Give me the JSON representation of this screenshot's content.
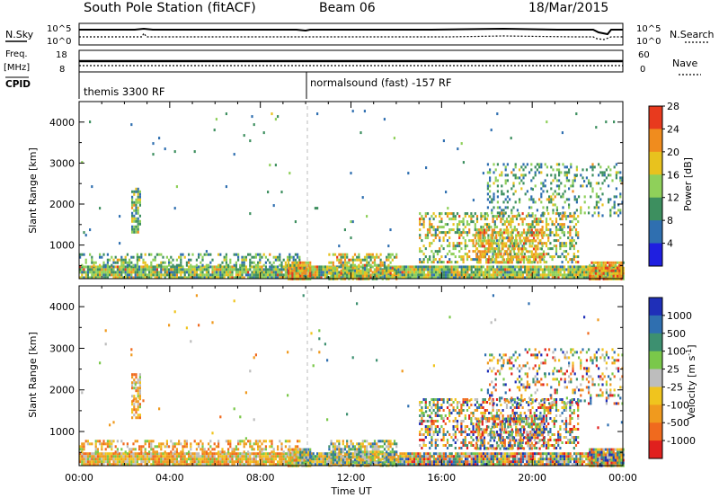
{
  "header": {
    "station": "South Pole Station (fitACF)",
    "beam": "Beam 06",
    "date": "18/Mar/2015"
  },
  "summary_panels": {
    "nsky_label": "N.Sky",
    "nsky_ticks": [
      "10^5",
      "10^0"
    ],
    "nsearch_label": "N.Search",
    "nsearch_ticks": [
      "10^5",
      "10^0"
    ],
    "freq_label_1": "Freq.",
    "freq_label_2": "[MHz]",
    "freq_ticks": [
      "18",
      "8"
    ],
    "nave_label": "Nave",
    "nave_ticks": [
      "60",
      "0"
    ],
    "cpid_label": "CPID",
    "cpid_segments": [
      "themis 3300 RF",
      "normalsound (fast) -157 RF"
    ]
  },
  "chart_data": [
    {
      "type": "heatmap",
      "name": "power",
      "ylabel": "Slant Range [km]",
      "xlabel": "",
      "ylim": [
        180,
        4500
      ],
      "yticks": [
        "1000",
        "2000",
        "3000",
        "4000"
      ],
      "colorbar_label": "Power [dB]",
      "colorbar_ticks": [
        "4",
        "8",
        "12",
        "16",
        "20",
        "24",
        "28"
      ],
      "colorbar_colors": [
        "#1f1fe0",
        "#2f6fb0",
        "#3d8f5f",
        "#8fd05a",
        "#e8c21e",
        "#f08c1e",
        "#e83a1e"
      ],
      "mode_change_time": "09:50"
    },
    {
      "type": "heatmap",
      "name": "velocity",
      "ylabel": "Slant Range [km]",
      "xlabel": "Time UT",
      "ylim": [
        180,
        4500
      ],
      "yticks": [
        "1000",
        "2000",
        "3000",
        "4000"
      ],
      "xticks": [
        "00:00",
        "04:00",
        "08:00",
        "12:00",
        "16:00",
        "20:00",
        "00:00"
      ],
      "colorbar_label": "Velocity [m s^-1]",
      "colorbar_ticks": [
        "1000",
        "500",
        "100",
        "25",
        "-25",
        "-100",
        "-500",
        "-1000"
      ],
      "colorbar_colors": [
        "#1f2fb8",
        "#2f6fb0",
        "#3d9070",
        "#7ac84a",
        "#bdbdbd",
        "#f0c41e",
        "#f09a1e",
        "#f06a1e",
        "#e0201e"
      ]
    }
  ]
}
